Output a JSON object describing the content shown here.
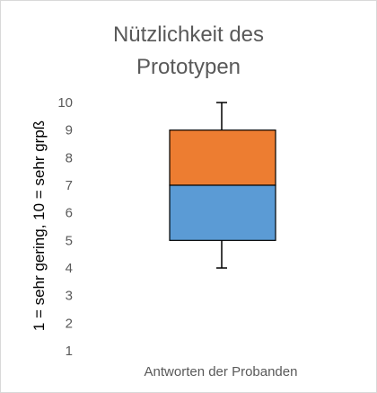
{
  "chart_data": {
    "type": "box",
    "title_lines": [
      "Nützlichkeit des",
      "Prototypen"
    ],
    "ylabel": "1 = sehr gering, 10 = sehr grpß",
    "xlabel": "Antworten der Probanden",
    "ylim": [
      1,
      10
    ],
    "yticks": [
      1,
      2,
      3,
      4,
      5,
      6,
      7,
      8,
      9,
      10
    ],
    "categories": [
      "Antworten der Probanden"
    ],
    "boxes": [
      {
        "category": "Antworten der Probanden",
        "min": 4,
        "q1": 5,
        "median": 7,
        "q3": 9,
        "max": 10,
        "lower_color": "#5b9bd5",
        "upper_color": "#ed7d31"
      }
    ],
    "grid": false,
    "legend": "none"
  }
}
